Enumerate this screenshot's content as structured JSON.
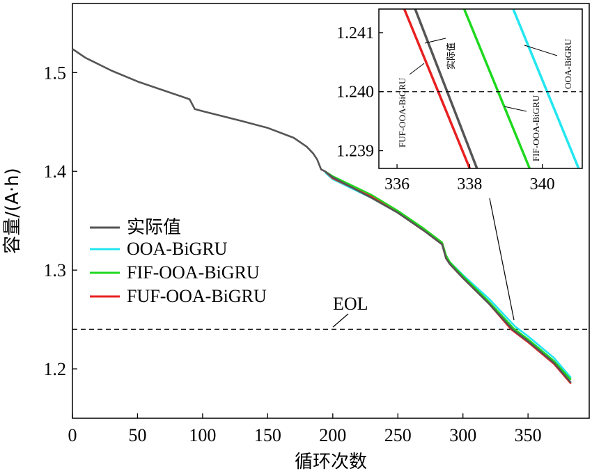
{
  "chart_data": [
    {
      "type": "line",
      "xlabel": "循环次数",
      "ylabel": "容量/(A·h)",
      "xlim": [
        0,
        397
      ],
      "ylim": [
        1.15,
        1.57
      ],
      "xticks": [
        "0",
        "50",
        "100",
        "150",
        "200",
        "250",
        "300",
        "350"
      ],
      "yticks": [
        "1.2",
        "1.3",
        "1.4",
        "1.5"
      ],
      "legend_position": "left-middle",
      "eol": {
        "label": "EOL",
        "y": 1.24
      },
      "series": [
        {
          "name": "实际值",
          "color": "#555555",
          "x": [
            0,
            10,
            30,
            50,
            70,
            90,
            94,
            100,
            130,
            150,
            170,
            180,
            185,
            188,
            191,
            194,
            200,
            230,
            250,
            270,
            284,
            287,
            290,
            300,
            320,
            338,
            350,
            370,
            383
          ],
          "y": [
            1.524,
            1.515,
            1.502,
            1.491,
            1.482,
            1.473,
            1.463,
            1.461,
            1.451,
            1.444,
            1.434,
            1.425,
            1.418,
            1.412,
            1.402,
            1.4,
            1.394,
            1.373,
            1.358,
            1.34,
            1.326,
            1.312,
            1.306,
            1.292,
            1.266,
            1.24,
            1.228,
            1.206,
            1.186
          ]
        },
        {
          "name": "OOA-BiGRU",
          "color": "#22e6f0",
          "x": [
            194,
            200,
            230,
            250,
            270,
            284,
            287,
            290,
            300,
            320,
            340,
            350,
            370,
            383
          ],
          "y": [
            1.399,
            1.392,
            1.373,
            1.358,
            1.341,
            1.327,
            1.314,
            1.308,
            1.295,
            1.271,
            1.243,
            1.233,
            1.211,
            1.191
          ]
        },
        {
          "name": "FIF-OOA-BiGRU",
          "color": "#1ed81e",
          "x": [
            194,
            200,
            230,
            250,
            270,
            284,
            287,
            290,
            300,
            320,
            339,
            350,
            370,
            383
          ],
          "y": [
            1.4,
            1.395,
            1.376,
            1.36,
            1.342,
            1.328,
            1.315,
            1.308,
            1.294,
            1.268,
            1.241,
            1.23,
            1.208,
            1.189
          ]
        },
        {
          "name": "FUF-OOA-BiGRU",
          "color": "#e82020",
          "x": [
            194,
            200,
            230,
            250,
            270,
            284,
            287,
            290,
            300,
            320,
            337,
            350,
            370,
            383
          ],
          "y": [
            1.4,
            1.393,
            1.374,
            1.358,
            1.34,
            1.326,
            1.312,
            1.306,
            1.292,
            1.266,
            1.24,
            1.227,
            1.205,
            1.185
          ]
        }
      ]
    },
    {
      "type": "line",
      "role": "inset",
      "xlim": [
        335.5,
        341.1
      ],
      "ylim": [
        1.2387,
        1.2414
      ],
      "xticks": [
        "336",
        "338",
        "340"
      ],
      "yticks": [
        "1.239",
        "1.240",
        "1.241"
      ],
      "eol_y": 1.24,
      "annotations": [
        "实际值",
        "OOA-BiGRU",
        "FIF-OOA-BiGRU",
        "FUF-OOA-BiGRU"
      ],
      "series": [
        {
          "name": "实际值",
          "color": "#555555",
          "x": [
            336.5,
            338.2
          ],
          "y": [
            1.2414,
            1.2387
          ]
        },
        {
          "name": "OOA-BiGRU",
          "color": "#22e6f0",
          "x": [
            339.2,
            341.0
          ],
          "y": [
            1.2414,
            1.2387
          ]
        },
        {
          "name": "FIF-OOA-BiGRU",
          "color": "#1ed81e",
          "x": [
            337.85,
            339.65
          ],
          "y": [
            1.2414,
            1.2387
          ]
        },
        {
          "name": "FUF-OOA-BiGRU",
          "color": "#e82020",
          "x": [
            336.2,
            338.0
          ],
          "y": [
            1.2414,
            1.2387
          ]
        }
      ]
    }
  ]
}
